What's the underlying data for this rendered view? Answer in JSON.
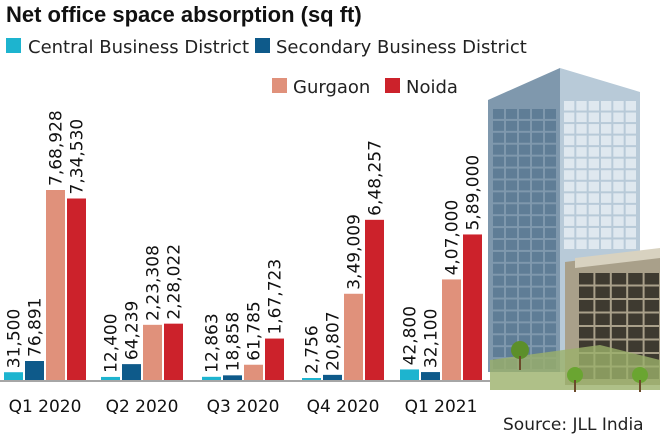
{
  "chart_data": {
    "type": "bar",
    "title": "Net office space absorption (sq ft)",
    "categories": [
      "Q1 2020",
      "Q2 2020",
      "Q3 2020",
      "Q4 2020",
      "Q1 2021"
    ],
    "series": [
      {
        "name": "Central Business District",
        "color": "#1db4cf",
        "values": [
          31500,
          12400,
          12863,
          2756,
          42800
        ],
        "labels": [
          "31,500",
          "12,400",
          "12,863",
          "2,756",
          "42,800"
        ]
      },
      {
        "name": "Secondary Business District",
        "color": "#0e5a8a",
        "values": [
          76891,
          64239,
          18858,
          20807,
          32100
        ],
        "labels": [
          "76,891",
          "64,239",
          "18,858",
          "20,807",
          "32,100"
        ]
      },
      {
        "name": "Gurgaon",
        "color": "#e0917b",
        "values": [
          768928,
          223308,
          61785,
          349009,
          407000
        ],
        "labels": [
          "7,68,928",
          "2,23,308",
          "61,785",
          "3,49,009",
          "4,07,000"
        ]
      },
      {
        "name": "Noida",
        "color": "#cc222b",
        "values": [
          734530,
          228022,
          167723,
          648257,
          589000
        ],
        "labels": [
          "7,34,530",
          "2,28,022",
          "1,67,723",
          "6,48,257",
          "5,89,000"
        ]
      }
    ],
    "xlabel": "",
    "ylabel": "",
    "ylim": [
      0,
      800000
    ],
    "grid": false,
    "legend": "top",
    "source": "Source: JLL India"
  }
}
